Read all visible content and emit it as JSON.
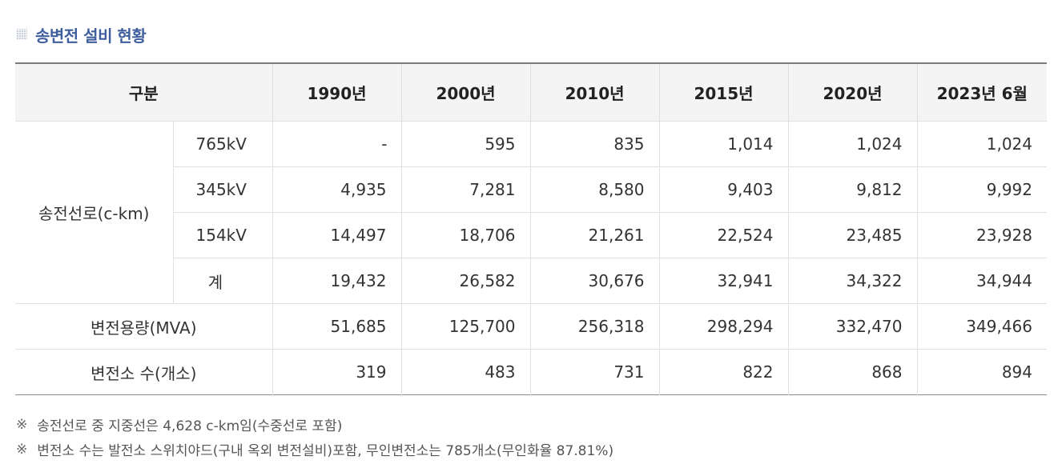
{
  "heading": {
    "icon": "grid-square-bullet-icon",
    "title": "송변전 설비 현황"
  },
  "table": {
    "header": {
      "category": "구분",
      "years": [
        "1990년",
        "2000년",
        "2010년",
        "2015년",
        "2020년",
        "2023년 6월"
      ]
    },
    "group_label": "송전선로(c-km)",
    "transmission_rows": [
      {
        "label": "765kV",
        "values": [
          "-",
          "595",
          "835",
          "1,014",
          "1,024",
          "1,024"
        ]
      },
      {
        "label": "345kV",
        "values": [
          "4,935",
          "7,281",
          "8,580",
          "9,403",
          "9,812",
          "9,992"
        ]
      },
      {
        "label": "154kV",
        "values": [
          "14,497",
          "18,706",
          "21,261",
          "22,524",
          "23,485",
          "23,928"
        ]
      },
      {
        "label": "계",
        "values": [
          "19,432",
          "26,582",
          "30,676",
          "32,941",
          "34,322",
          "34,944"
        ]
      }
    ],
    "capacity_row": {
      "label": "변전용량(MVA)",
      "values": [
        "51,685",
        "125,700",
        "256,318",
        "298,294",
        "332,470",
        "349,466"
      ]
    },
    "substation_row": {
      "label": "변전소 수(개소)",
      "values": [
        "319",
        "483",
        "731",
        "822",
        "868",
        "894"
      ]
    }
  },
  "notes": {
    "mark": "※",
    "items": [
      "송전선로 중 지중선은 4,628 c-km임(수중선로 포함)",
      "변전소 수는 발전소 스위치야드(구내 옥외 변전설비)포함, 무인변전소는 785개소(무인화율 87.81%)"
    ]
  }
}
